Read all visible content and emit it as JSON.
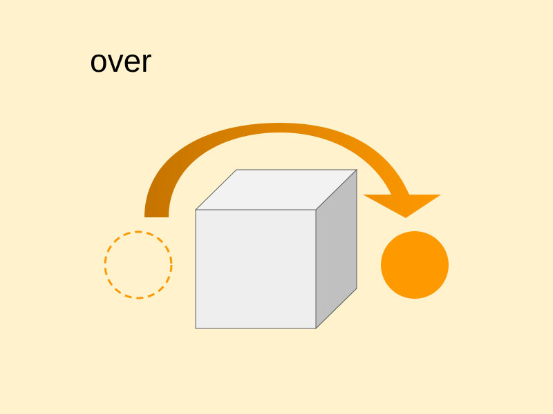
{
  "word": "over",
  "colors": {
    "background": "#fff2cc",
    "arrow_dark": "#c57400",
    "arrow_light": "#ff9900",
    "circle": "#ff9900",
    "cube_front": "#eeeeee",
    "cube_top": "#f2f2f2",
    "cube_side": "#c0c0c0",
    "cube_outline": "#5c5c5c"
  },
  "elements": {
    "start_marker": "dashed-circle",
    "end_marker": "filled-circle",
    "obstacle": "cube",
    "motion": "curved-arrow"
  }
}
